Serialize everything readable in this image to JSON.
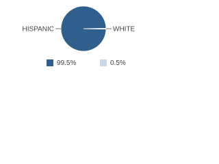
{
  "chart_data": {
    "type": "pie",
    "categories": [
      "HISPANIC",
      "WHITE"
    ],
    "values": [
      99.5,
      0.5
    ],
    "value_labels": [
      "99.5%",
      "0.5%"
    ],
    "colors": [
      "#2f5f8c",
      "#c9d7e6"
    ]
  }
}
